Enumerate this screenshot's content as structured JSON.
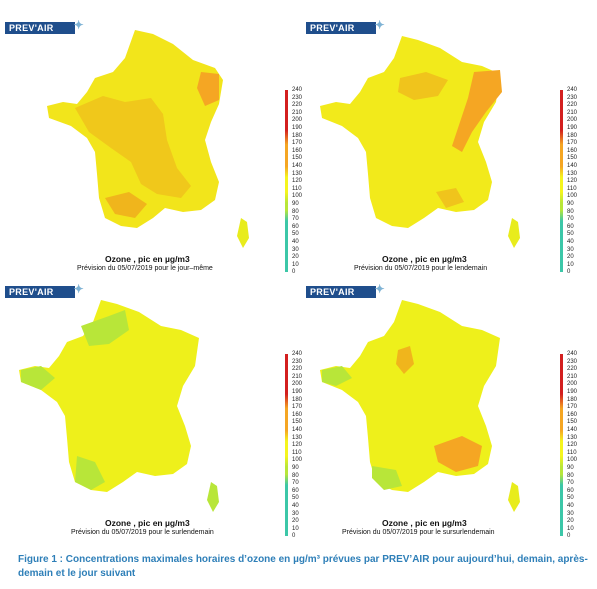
{
  "figure_caption": "Figure 1 : Concentrations maximales horaires d’ozone en µg/m³ prévues par PREV’AIR pour aujourd’hui, demain, après-demain et le jour suivant",
  "logo_text": "PREV'AIR",
  "scale": {
    "ticks": [
      "240",
      "230",
      "220",
      "210",
      "200",
      "190",
      "180",
      "170",
      "160",
      "150",
      "140",
      "130",
      "120",
      "110",
      "100",
      "90",
      "80",
      "70",
      "60",
      "50",
      "40",
      "30",
      "20",
      "10",
      "0"
    ],
    "colors": {
      "low": "#3cc7a8",
      "mid": "#b8e639",
      "yellow": "#f5f51e",
      "orange": "#f5a623",
      "high": "#d31f1f"
    }
  },
  "panels": [
    {
      "title": "Ozone , pic en µg/m3",
      "subtitle": "Prévision du 05/07/2019 pour le jour–même",
      "base": "#f2e51b"
    },
    {
      "title": "Ozone , pic en µg/m3",
      "subtitle": "Prévision du 05/07/2019 pour le lendemain",
      "base": "#f2ea1b"
    },
    {
      "title": "Ozone , pic en µg/m3",
      "subtitle": "Prévision du 05/07/2019 pour le surlendemain",
      "base": "#eef01b"
    },
    {
      "title": "Ozone , pic en µg/m3",
      "subtitle": "Prévision du 05/07/2019 pour le sursurlendemain",
      "base": "#eef01b"
    }
  ]
}
